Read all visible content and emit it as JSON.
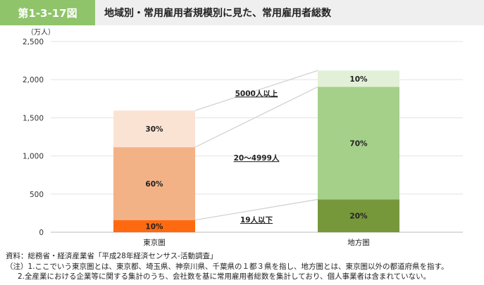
{
  "header": {
    "figure_number": "第1-3-17図",
    "title": "地域別・常用雇用者規模別に見た、常用雇用者総数"
  },
  "colors": {
    "badge": "#8fc46a",
    "header_bg": "#efefef",
    "tokyo": [
      "#ff6a10",
      "#f3b286",
      "#fbe3d4"
    ],
    "regional": [
      "#77973b",
      "#a5d08a",
      "#e3f0d8"
    ],
    "connector": "#cfcfcf"
  },
  "chart_data": {
    "type": "bar",
    "stacked": true,
    "unit_label": "（万人）",
    "categories": [
      "東京圏",
      "地方圏"
    ],
    "ylim": [
      0,
      2500
    ],
    "yticks": [
      0,
      500,
      1000,
      1500,
      2000,
      2500
    ],
    "ytick_labels": [
      "0",
      "500",
      "1,000",
      "1,500",
      "2,000",
      "2,500"
    ],
    "series": [
      {
        "name": "19人以下",
        "values": [
          160,
          430
        ],
        "labels": [
          "10%",
          "20%"
        ]
      },
      {
        "name": "20～4999人",
        "values": [
          955,
          1475
        ],
        "labels": [
          "60%",
          "70%"
        ]
      },
      {
        "name": "5000人以上",
        "values": [
          480,
          215
        ],
        "labels": [
          "30%",
          "10%"
        ]
      }
    ],
    "grid": true,
    "legend": "between bars, labels on connector lines"
  },
  "notes": [
    "資料：総務省・経済産業省「平成28年経済センサス-活動調査」",
    "（注）1.ここでいう東京圏とは、東京都、埼玉県、神奈川県、千葉県の１都３県を指し、地方圏とは、東京圏以外の都道府県を指す。",
    "2.全産業における企業等に関する集計のうち、会社数を基に常用雇用者総数を集計しており、個人事業者は含まれていない。"
  ]
}
